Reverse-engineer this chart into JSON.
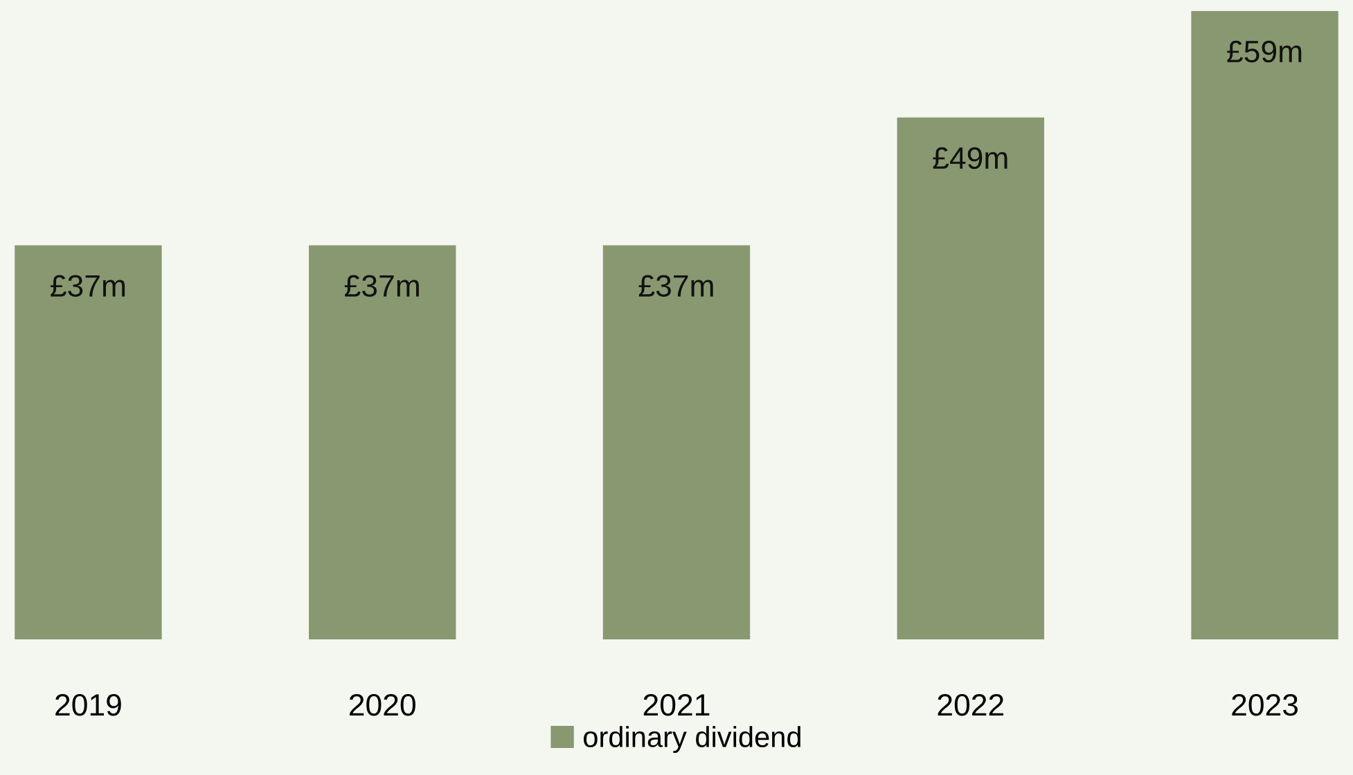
{
  "chart_data": {
    "type": "bar",
    "categories": [
      "2019",
      "2020",
      "2021",
      "2022",
      "2023"
    ],
    "series": [
      {
        "name": "ordinary dividend",
        "color": "#889870",
        "values": [
          37,
          37,
          37,
          49,
          59
        ],
        "value_labels": [
          "£37m",
          "£37m",
          "£37m",
          "£49m",
          "£59m"
        ]
      }
    ],
    "legend": "bottom",
    "grid": false
  }
}
